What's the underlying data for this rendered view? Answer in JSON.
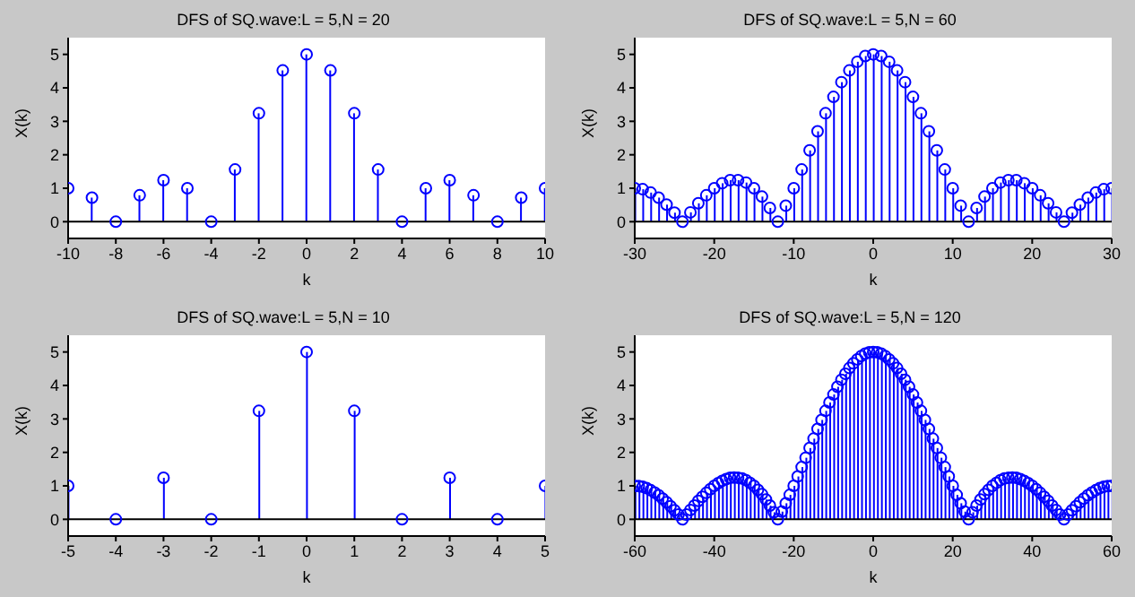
{
  "chart_data": [
    {
      "type": "lollipop",
      "title": "DFS of SQ.wave:L = 5,N = 20",
      "xlabel": "k",
      "ylabel": "X(k)",
      "x": [
        -10,
        -9,
        -8,
        -7,
        -6,
        -5,
        -4,
        -3,
        -2,
        -1,
        0,
        1,
        2,
        3,
        4,
        5,
        6,
        7,
        8,
        9,
        10
      ],
      "series": [
        {
          "color": "#0000ff",
          "values": [
            1,
            0.72,
            0,
            0.79,
            1.24,
            1,
            0,
            1.56,
            3.24,
            4.52,
            5,
            4.52,
            3.24,
            1.56,
            0,
            1,
            1.24,
            0.79,
            0,
            0.72,
            1
          ]
        }
      ],
      "xlim": [
        -10,
        10
      ],
      "xticks": [
        -10,
        -8,
        -6,
        -4,
        -2,
        0,
        2,
        4,
        6,
        8,
        10
      ],
      "ylim": [
        -0.5,
        5.5
      ],
      "yticks": [
        0,
        1,
        2,
        3,
        4,
        5
      ],
      "ref_lines": [
        {
          "axis": "y",
          "value": 0,
          "color": "#000000"
        }
      ],
      "marker": "circle",
      "grid": false,
      "legend": false
    },
    {
      "type": "lollipop",
      "title": "DFS of SQ.wave:L = 5,N = 60",
      "xlabel": "k",
      "ylabel": "X(k)",
      "x": [
        -30,
        -29,
        -28,
        -27,
        -26,
        -25,
        -24,
        -23,
        -22,
        -21,
        -20,
        -19,
        -18,
        -17,
        -16,
        -15,
        -14,
        -13,
        -12,
        -11,
        -10,
        -9,
        -8,
        -7,
        -6,
        -5,
        -4,
        -3,
        -2,
        -1,
        0,
        1,
        2,
        3,
        4,
        5,
        6,
        7,
        8,
        9,
        10,
        11,
        12,
        13,
        14,
        15,
        16,
        17,
        18,
        19,
        20,
        21,
        22,
        23,
        24,
        25,
        26,
        27,
        28,
        29,
        30
      ],
      "series": [
        {
          "color": "#0000ff",
          "values": [
            1,
            0.97,
            0.87,
            0.72,
            0.51,
            0.27,
            0,
            0.28,
            0.55,
            0.79,
            1,
            1.15,
            1.24,
            1.24,
            1.17,
            1,
            0.75,
            0.41,
            0,
            0.48,
            1,
            1.56,
            2.13,
            2.7,
            3.24,
            3.73,
            4.17,
            4.52,
            4.78,
            4.95,
            5,
            4.95,
            4.78,
            4.52,
            4.17,
            3.73,
            3.24,
            2.7,
            2.13,
            1.56,
            1,
            0.48,
            0,
            0.41,
            0.75,
            1,
            1.17,
            1.24,
            1.24,
            1.15,
            1,
            0.79,
            0.55,
            0.28,
            0,
            0.27,
            0.51,
            0.72,
            0.87,
            0.97,
            1
          ]
        }
      ],
      "xlim": [
        -30,
        30
      ],
      "xticks": [
        -30,
        -20,
        -10,
        0,
        10,
        20,
        30
      ],
      "ylim": [
        -0.5,
        5.5
      ],
      "yticks": [
        0,
        1,
        2,
        3,
        4,
        5
      ],
      "ref_lines": [
        {
          "axis": "y",
          "value": 0,
          "color": "#000000"
        }
      ],
      "marker": "circle",
      "grid": false,
      "legend": false
    },
    {
      "type": "lollipop",
      "title": "DFS of SQ.wave:L = 5,N = 10",
      "xlabel": "k",
      "ylabel": "X(k)",
      "x": [
        -5,
        -4,
        -3,
        -2,
        -1,
        0,
        1,
        2,
        3,
        4,
        5
      ],
      "series": [
        {
          "color": "#0000ff",
          "values": [
            1,
            0,
            1.24,
            0,
            3.24,
            5,
            3.24,
            0,
            1.24,
            0,
            1
          ]
        }
      ],
      "xlim": [
        -5,
        5
      ],
      "xticks": [
        -5,
        -4,
        -3,
        -2,
        -1,
        0,
        1,
        2,
        3,
        4,
        5
      ],
      "ylim": [
        -0.5,
        5.5
      ],
      "yticks": [
        0,
        1,
        2,
        3,
        4,
        5
      ],
      "ref_lines": [
        {
          "axis": "y",
          "value": 0,
          "color": "#000000"
        }
      ],
      "marker": "circle",
      "grid": false,
      "legend": false
    },
    {
      "type": "lollipop",
      "title": "DFS of SQ.wave:L = 5,N = 120",
      "xlabel": "k",
      "ylabel": "X(k)",
      "x": [
        -60,
        -59,
        -58,
        -57,
        -56,
        -55,
        -54,
        -53,
        -52,
        -51,
        -50,
        -49,
        -48,
        -47,
        -46,
        -45,
        -44,
        -43,
        -42,
        -41,
        -40,
        -39,
        -38,
        -37,
        -36,
        -35,
        -34,
        -33,
        -32,
        -31,
        -30,
        -29,
        -28,
        -27,
        -26,
        -25,
        -24,
        -23,
        -22,
        -21,
        -20,
        -19,
        -18,
        -17,
        -16,
        -15,
        -14,
        -13,
        -12,
        -11,
        -10,
        -9,
        -8,
        -7,
        -6,
        -5,
        -4,
        -3,
        -2,
        -1,
        0,
        1,
        2,
        3,
        4,
        5,
        6,
        7,
        8,
        9,
        10,
        11,
        12,
        13,
        14,
        15,
        16,
        17,
        18,
        19,
        20,
        21,
        22,
        23,
        24,
        25,
        26,
        27,
        28,
        29,
        30,
        31,
        32,
        33,
        34,
        35,
        36,
        37,
        38,
        39,
        40,
        41,
        42,
        43,
        44,
        45,
        46,
        47,
        48,
        49,
        50,
        51,
        52,
        53,
        54,
        55,
        56,
        57,
        58,
        59,
        60
      ],
      "series": [
        {
          "color": "#0000ff",
          "values": [
            1,
            0.99,
            0.97,
            0.93,
            0.87,
            0.8,
            0.72,
            0.62,
            0.51,
            0.39,
            0.27,
            0.14,
            0,
            0.14,
            0.28,
            0.41,
            0.55,
            0.67,
            0.79,
            0.9,
            1,
            1.08,
            1.15,
            1.2,
            1.24,
            1.25,
            1.24,
            1.22,
            1.17,
            1.09,
            1,
            0.88,
            0.75,
            0.59,
            0.41,
            0.21,
            0,
            0.23,
            0.48,
            0.73,
            1,
            1.28,
            1.56,
            1.84,
            2.13,
            2.41,
            2.7,
            2.97,
            3.24,
            3.49,
            3.73,
            3.96,
            4.17,
            4.35,
            4.52,
            4.66,
            4.78,
            4.88,
            4.95,
            4.99,
            5,
            4.99,
            4.95,
            4.88,
            4.78,
            4.66,
            4.52,
            4.35,
            4.17,
            3.96,
            3.73,
            3.49,
            3.24,
            2.97,
            2.7,
            2.41,
            2.13,
            1.84,
            1.56,
            1.28,
            1,
            0.73,
            0.48,
            0.23,
            0,
            0.21,
            0.41,
            0.59,
            0.75,
            0.88,
            1,
            1.09,
            1.17,
            1.22,
            1.24,
            1.25,
            1.24,
            1.2,
            1.15,
            1.08,
            1,
            0.9,
            0.79,
            0.67,
            0.55,
            0.41,
            0.28,
            0.14,
            0,
            0.14,
            0.27,
            0.39,
            0.51,
            0.62,
            0.72,
            0.8,
            0.87,
            0.93,
            0.97,
            0.99,
            1
          ]
        }
      ],
      "xlim": [
        -60,
        60
      ],
      "xticks": [
        -60,
        -40,
        -20,
        0,
        20,
        40,
        60
      ],
      "ylim": [
        -0.5,
        5.5
      ],
      "yticks": [
        0,
        1,
        2,
        3,
        4,
        5
      ],
      "ref_lines": [
        {
          "axis": "y",
          "value": 0,
          "color": "#000000"
        }
      ],
      "marker": "circle",
      "grid": false,
      "legend": false
    }
  ]
}
